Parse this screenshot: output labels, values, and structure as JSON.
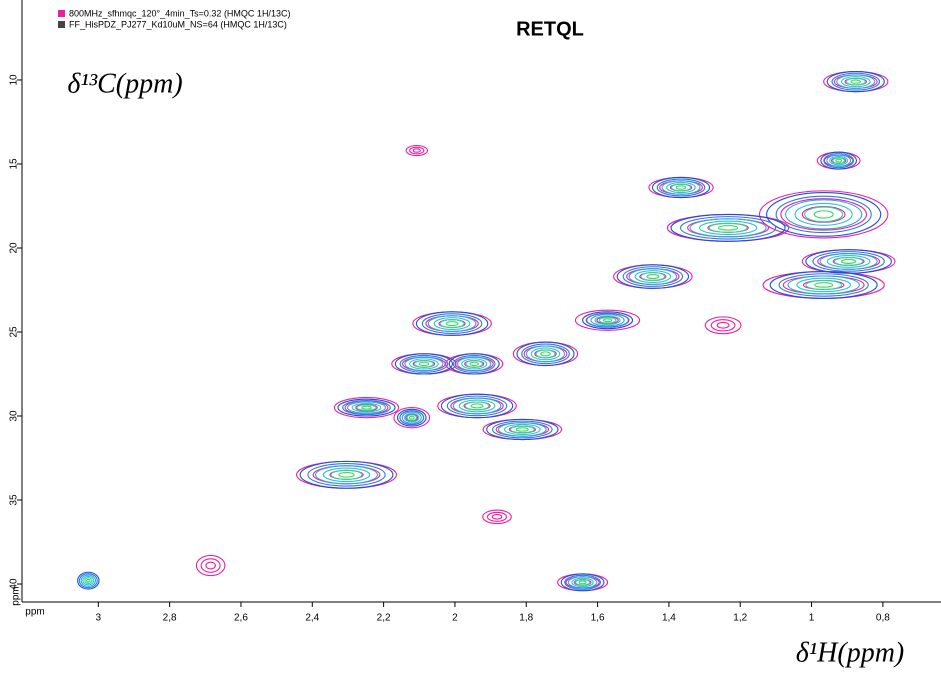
{
  "chart_data": {
    "type": "contour",
    "title": "RETQL",
    "xlabel": "δ¹H(ppm)",
    "ylabel": "δ¹³C(ppm)",
    "xunit": "ppm",
    "yunit": "ppm",
    "xlim": [
      3.214,
      0.637
    ],
    "ylim": [
      41.07,
      5.24
    ],
    "xticks": [
      3,
      {
        "value": 2.8,
        "label": "2,8"
      },
      {
        "value": 2.6,
        "label": "2,6"
      },
      {
        "value": 2.4,
        "label": "2,4"
      },
      {
        "value": 2.2,
        "label": "2,2"
      },
      2,
      {
        "value": 1.8,
        "label": "1,8"
      },
      {
        "value": 1.6,
        "label": "1,6"
      },
      {
        "value": 1.4,
        "label": "1,4"
      },
      {
        "value": 1.2,
        "label": "1,2"
      },
      1,
      {
        "value": 0.8,
        "label": "0,8"
      }
    ],
    "yticks": [
      10,
      15,
      20,
      25,
      30,
      35,
      40
    ],
    "series": [
      {
        "name": "800MHz_sfhmqc_120°_4min_Ts=0.32 (HMQC 1H/13C)",
        "color": "#ee1ea0",
        "contour_colors": [
          "#ee1ea0"
        ],
        "x": [
          0.876,
          0.924,
          1.366,
          0.966,
          1.234,
          0.896,
          0.966,
          1.445,
          2.008,
          1.572,
          2.087,
          1.946,
          1.746,
          2.248,
          1.938,
          2.121,
          1.811,
          2.304,
          1.642,
          2.685,
          1.882,
          2.107,
          1.248
        ],
        "y": [
          10.1,
          14.8,
          16.4,
          18.0,
          18.8,
          20.8,
          22.2,
          21.7,
          24.5,
          24.3,
          26.9,
          26.9,
          26.3,
          29.5,
          29.4,
          30.1,
          30.8,
          33.5,
          39.9,
          38.9,
          36.0,
          14.2,
          24.6
        ],
        "dx": [
          0.09,
          0.06,
          0.09,
          0.18,
          0.17,
          0.13,
          0.17,
          0.11,
          0.11,
          0.09,
          0.09,
          0.08,
          0.09,
          0.09,
          0.11,
          0.05,
          0.11,
          0.14,
          0.07,
          0.04,
          0.04,
          0.03,
          0.05
        ],
        "dy": [
          0.6,
          0.5,
          0.6,
          1.4,
          0.8,
          0.7,
          0.8,
          0.7,
          0.7,
          0.6,
          0.6,
          0.6,
          0.7,
          0.6,
          0.7,
          0.6,
          0.6,
          0.8,
          0.5,
          0.6,
          0.4,
          0.3,
          0.5
        ]
      },
      {
        "name": "FF_HisPDZ_PJ277_Kd10uM_NS=64 (HMQC 1H/13C)",
        "color": "#444444",
        "contour_colors": [
          "#1f4fd8",
          "#2a7be0",
          "#29a8e0",
          "#27c8d0",
          "#2cd8a0",
          "#3adc5a"
        ],
        "x": [
          0.876,
          0.924,
          1.366,
          0.966,
          1.234,
          0.896,
          0.966,
          1.445,
          2.008,
          1.572,
          2.087,
          1.946,
          1.746,
          2.248,
          1.938,
          2.121,
          1.811,
          2.304,
          1.642,
          3.028
        ],
        "y": [
          10.1,
          14.8,
          16.4,
          18.0,
          18.8,
          20.8,
          22.2,
          21.7,
          24.5,
          24.3,
          26.9,
          26.9,
          26.3,
          29.5,
          29.4,
          30.1,
          30.8,
          33.5,
          39.9,
          39.8
        ],
        "dx": [
          0.08,
          0.05,
          0.08,
          0.16,
          0.16,
          0.12,
          0.15,
          0.1,
          0.1,
          0.07,
          0.08,
          0.07,
          0.08,
          0.08,
          0.1,
          0.04,
          0.1,
          0.13,
          0.06,
          0.03
        ],
        "dy": [
          0.6,
          0.5,
          0.6,
          1.3,
          0.8,
          0.7,
          0.8,
          0.7,
          0.7,
          0.5,
          0.6,
          0.6,
          0.7,
          0.5,
          0.7,
          0.5,
          0.6,
          0.8,
          0.5,
          0.5
        ]
      }
    ]
  }
}
